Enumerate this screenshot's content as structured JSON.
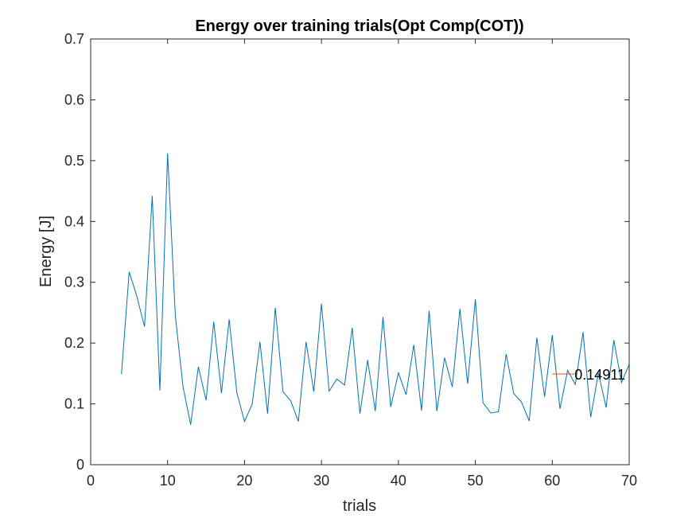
{
  "chart_data": {
    "type": "line",
    "title": "Energy over training trials(Opt Comp(COT))",
    "xlabel": "trials",
    "ylabel": "Energy [J]",
    "xlim": [
      0,
      70
    ],
    "ylim": [
      0,
      0.7
    ],
    "xticks": [
      "0",
      "10",
      "20",
      "30",
      "40",
      "50",
      "60",
      "70"
    ],
    "yticks": [
      "0",
      "0.1",
      "0.2",
      "0.3",
      "0.4",
      "0.5",
      "0.6",
      "0.7"
    ],
    "grid": false,
    "box": true,
    "colors": {
      "series": "#0072BD",
      "reference": "#D95319",
      "axes": "#262626"
    },
    "series": [
      {
        "x": [
          4,
          5,
          6,
          7,
          8,
          9,
          10,
          11,
          12,
          13,
          14,
          15,
          16,
          17,
          18,
          19,
          20,
          21,
          22,
          23,
          24,
          25,
          26,
          27,
          28,
          29,
          30,
          31,
          32,
          33,
          34,
          35,
          36,
          37,
          38,
          39,
          40,
          41,
          42,
          43,
          44,
          45,
          46,
          47,
          48,
          49,
          50,
          51,
          52,
          53,
          54,
          55,
          56,
          57,
          58,
          59,
          60,
          61,
          62,
          63,
          64,
          65,
          66,
          67,
          68,
          69,
          70
        ],
        "values": [
          0.149,
          0.317,
          0.277,
          0.227,
          0.442,
          0.122,
          0.512,
          0.245,
          0.128,
          0.066,
          0.161,
          0.106,
          0.235,
          0.118,
          0.239,
          0.118,
          0.071,
          0.1,
          0.202,
          0.084,
          0.258,
          0.12,
          0.105,
          0.071,
          0.202,
          0.12,
          0.265,
          0.121,
          0.141,
          0.131,
          0.225,
          0.084,
          0.172,
          0.088,
          0.243,
          0.095,
          0.151,
          0.115,
          0.197,
          0.089,
          0.253,
          0.088,
          0.176,
          0.128,
          0.256,
          0.133,
          0.272,
          0.102,
          0.085,
          0.087,
          0.182,
          0.117,
          0.103,
          0.072,
          0.209,
          0.112,
          0.213,
          0.092,
          0.155,
          0.132,
          0.218,
          0.078,
          0.151,
          0.094,
          0.205,
          0.135,
          0.165
        ]
      }
    ],
    "reference": {
      "x": [
        60,
        70
      ],
      "value": 0.14911,
      "label": "0.14911"
    }
  }
}
